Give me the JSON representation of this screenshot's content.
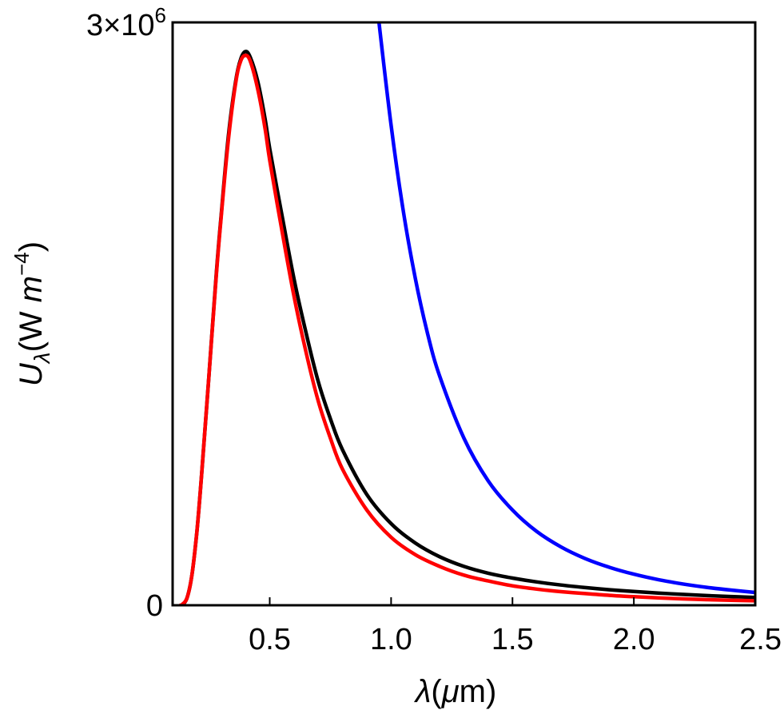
{
  "chart_data": {
    "type": "line",
    "xlabel": "λ(μm)",
    "xlabel_parts": {
      "symbol": "λ",
      "open": "(",
      "mu": "μ",
      "unit": "m)"
    },
    "ylabel_parts": {
      "symbol": "U",
      "sub": "λ",
      "unit": "(W ",
      "m": "m",
      "exp": "−4",
      "close": ")"
    },
    "xlim": [
      0.1,
      2.5
    ],
    "ylim": [
      0,
      3000000
    ],
    "x_ticks": [
      {
        "value": 0.5,
        "label": "0.5"
      },
      {
        "value": 1.0,
        "label": "1.0"
      },
      {
        "value": 1.5,
        "label": "1.5"
      },
      {
        "value": 2.0,
        "label": "2.0"
      },
      {
        "value": 2.5,
        "label": "2.5"
      }
    ],
    "y_ticks": [
      {
        "value": 0,
        "label": "0"
      }
    ],
    "y_top_label": {
      "base": "3×10",
      "exp": "6"
    },
    "grid": false,
    "series": [
      {
        "color": "#0000ff",
        "x": [
          0.95,
          1.0,
          1.05,
          1.1,
          1.15,
          1.2,
          1.3,
          1.4,
          1.5,
          1.6,
          1.7,
          1.8,
          1.9,
          2.0,
          2.1,
          2.2,
          2.3,
          2.4,
          2.5
        ],
        "y": [
          3000000,
          2470000,
          2030000,
          1680000,
          1400000,
          1180000,
          860000,
          640000,
          490000,
          380000,
          300000,
          240000,
          195000,
          160000,
          132000,
          110000,
          92000,
          78000,
          66000
        ]
      },
      {
        "color": "#000000",
        "x": [
          0.14,
          0.16,
          0.18,
          0.2,
          0.22,
          0.25,
          0.28,
          0.3,
          0.33,
          0.36,
          0.38,
          0.4,
          0.42,
          0.45,
          0.48,
          0.5,
          0.55,
          0.6,
          0.65,
          0.7,
          0.75,
          0.8,
          0.9,
          1.0,
          1.1,
          1.2,
          1.3,
          1.4,
          1.5,
          1.6,
          1.7,
          1.8,
          1.9,
          2.0,
          2.1,
          2.2,
          2.3,
          2.4,
          2.5
        ],
        "y": [
          0,
          40000,
          160000,
          380000,
          680000,
          1190000,
          1710000,
          2010000,
          2420000,
          2700000,
          2810000,
          2850000,
          2820000,
          2700000,
          2510000,
          2350000,
          2010000,
          1680000,
          1400000,
          1150000,
          960000,
          800000,
          570000,
          420000,
          320000,
          250000,
          200000,
          165000,
          140000,
          120000,
          104000,
          91000,
          80000,
          71000,
          63000,
          56000,
          50000,
          45000,
          40000
        ]
      },
      {
        "color": "#ff0000",
        "x": [
          0.13,
          0.14,
          0.16,
          0.18,
          0.2,
          0.22,
          0.25,
          0.28,
          0.3,
          0.33,
          0.36,
          0.38,
          0.4,
          0.42,
          0.45,
          0.48,
          0.5,
          0.55,
          0.6,
          0.65,
          0.7,
          0.75,
          0.8,
          0.9,
          1.0,
          1.1,
          1.2,
          1.3,
          1.4,
          1.5,
          1.6,
          1.7,
          1.8,
          1.9,
          2.0,
          2.1,
          2.2,
          2.3,
          2.4,
          2.5
        ],
        "y": [
          0,
          5000,
          40000,
          160000,
          380000,
          680000,
          1190000,
          1700000,
          2000000,
          2400000,
          2690000,
          2800000,
          2830000,
          2800000,
          2660000,
          2460000,
          2290000,
          1930000,
          1590000,
          1300000,
          1050000,
          860000,
          700000,
          490000,
          350000,
          260000,
          200000,
          155000,
          125000,
          100000,
          83000,
          70000,
          60000,
          51000,
          44000,
          38000,
          33000,
          29000,
          26000,
          23000
        ]
      }
    ]
  }
}
